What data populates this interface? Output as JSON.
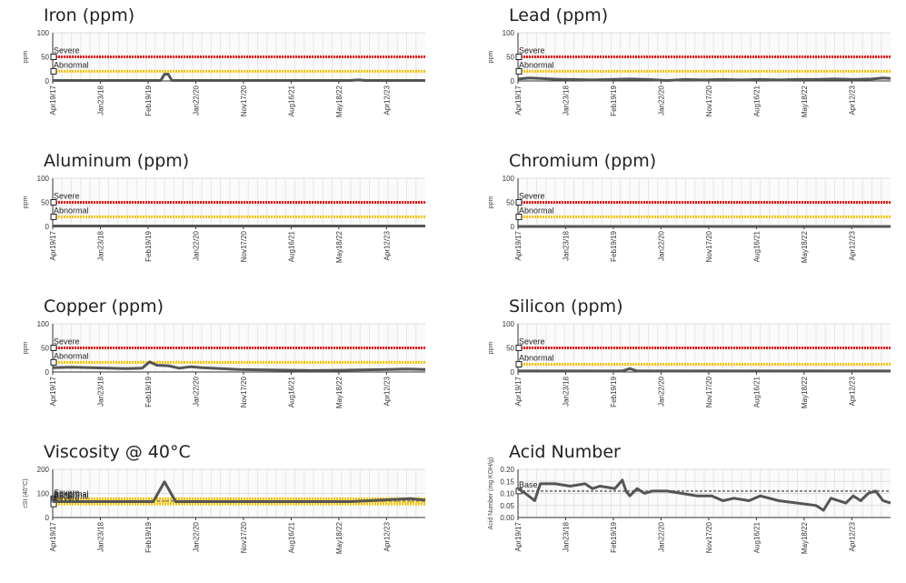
{
  "colors": {
    "severe": "#ee1111",
    "abnormal": "#f5c400",
    "base": "#888888",
    "data": "#555555",
    "grid": "#e6e6e6"
  },
  "chart_data": [
    {
      "type": "line",
      "title": "Iron (ppm)",
      "ylabel": "ppm",
      "ylim": [
        0,
        100
      ],
      "yticks": [
        "0",
        "50",
        "100"
      ],
      "xticks": [
        "Apr19/17",
        "Jan23/18",
        "Feb19/19",
        "Jan22/20",
        "Nov17/20",
        "Aug16/21",
        "May18/22",
        "Apr12/23"
      ],
      "limits": [
        {
          "label": "Severe",
          "value": 50,
          "color": "severe"
        },
        {
          "label": "Abnormal",
          "value": 20,
          "color": "abnormal"
        }
      ],
      "series": [
        {
          "x": [
            0,
            0.15,
            0.25,
            0.29,
            0.3,
            0.31,
            0.32,
            0.4,
            0.5,
            0.6,
            0.7,
            0.8,
            0.82,
            0.84,
            0.9,
            1
          ],
          "y": [
            1,
            1,
            1,
            1,
            14,
            14,
            1,
            1,
            1,
            1,
            1,
            1,
            2,
            1,
            1,
            1
          ]
        }
      ]
    },
    {
      "type": "line",
      "title": "Lead (ppm)",
      "ylabel": "ppm",
      "ylim": [
        0,
        100
      ],
      "yticks": [
        "0",
        "50",
        "100"
      ],
      "xticks": [
        "Apr19/17",
        "Jan23/18",
        "Feb19/19",
        "Jan22/20",
        "Nov17/20",
        "Aug16/21",
        "May18/22",
        "Apr12/23"
      ],
      "limits": [
        {
          "label": "Severe",
          "value": 50,
          "color": "severe"
        },
        {
          "label": "Abnormal",
          "value": 20,
          "color": "abnormal"
        }
      ],
      "series": [
        {
          "x": [
            0,
            0.03,
            0.06,
            0.09,
            0.12,
            0.15,
            0.2,
            0.25,
            0.3,
            0.35,
            0.4,
            0.45,
            0.5,
            0.55,
            0.6,
            0.65,
            0.7,
            0.75,
            0.8,
            0.85,
            0.9,
            0.95,
            0.98,
            1
          ],
          "y": [
            4,
            6,
            5,
            4,
            3,
            3,
            2,
            3,
            4,
            3,
            1,
            3,
            2,
            3,
            2,
            3,
            2,
            3,
            3,
            4,
            3,
            4,
            6,
            5
          ]
        }
      ]
    },
    {
      "type": "line",
      "title": "Aluminum (ppm)",
      "ylabel": "ppm",
      "ylim": [
        0,
        100
      ],
      "yticks": [
        "0",
        "50",
        "100"
      ],
      "xticks": [
        "Apr19/17",
        "Jan23/18",
        "Feb19/19",
        "Jan22/20",
        "Nov17/20",
        "Aug16/21",
        "May18/22",
        "Apr12/23"
      ],
      "limits": [
        {
          "label": "Severe",
          "value": 50,
          "color": "severe"
        },
        {
          "label": "Abnormal",
          "value": 20,
          "color": "abnormal"
        }
      ],
      "series": [
        {
          "x": [
            0,
            0.2,
            0.4,
            0.6,
            0.8,
            1
          ],
          "y": [
            1,
            1,
            1,
            1,
            1,
            1
          ]
        }
      ]
    },
    {
      "type": "line",
      "title": "Chromium (ppm)",
      "ylabel": "ppm",
      "ylim": [
        0,
        100
      ],
      "yticks": [
        "0",
        "50",
        "100"
      ],
      "xticks": [
        "Apr19/17",
        "Jan23/18",
        "Feb19/19",
        "Jan22/20",
        "Nov17/20",
        "Aug16/21",
        "May18/22",
        "Apr12/23"
      ],
      "limits": [
        {
          "label": "Severe",
          "value": 50,
          "color": "severe"
        },
        {
          "label": "Abnormal",
          "value": 20,
          "color": "abnormal"
        }
      ],
      "series": [
        {
          "x": [
            0,
            0.2,
            0.4,
            0.6,
            0.8,
            1
          ],
          "y": [
            0,
            0,
            0,
            0,
            0,
            0
          ]
        }
      ]
    },
    {
      "type": "line",
      "title": "Copper (ppm)",
      "ylabel": "ppm",
      "ylim": [
        0,
        100
      ],
      "yticks": [
        "0",
        "50",
        "100"
      ],
      "xticks": [
        "Apr19/17",
        "Jan23/18",
        "Feb19/19",
        "Jan22/20",
        "Nov17/20",
        "Aug16/21",
        "May18/22",
        "Apr12/23"
      ],
      "limits": [
        {
          "label": "Severe",
          "value": 50,
          "color": "severe"
        },
        {
          "label": "Abnormal",
          "value": 20,
          "color": "abnormal"
        }
      ],
      "series": [
        {
          "x": [
            0,
            0.05,
            0.1,
            0.15,
            0.2,
            0.24,
            0.26,
            0.28,
            0.31,
            0.34,
            0.37,
            0.4,
            0.45,
            0.5,
            0.6,
            0.7,
            0.8,
            0.9,
            0.95,
            1
          ],
          "y": [
            9,
            10,
            9,
            8,
            7,
            8,
            21,
            14,
            13,
            8,
            11,
            9,
            7,
            5,
            4,
            3,
            4,
            5,
            6,
            5
          ]
        }
      ]
    },
    {
      "type": "line",
      "title": "Silicon (ppm)",
      "ylabel": "ppm",
      "ylim": [
        0,
        100
      ],
      "yticks": [
        "0",
        "50",
        "100"
      ],
      "xticks": [
        "Apr19/17",
        "Jan23/18",
        "Feb19/19",
        "Jan22/20",
        "Nov17/20",
        "Aug16/21",
        "May18/22",
        "Apr12/23"
      ],
      "limits": [
        {
          "label": "Severe",
          "value": 50,
          "color": "severe"
        },
        {
          "label": "Abnormal",
          "value": 16,
          "color": "abnormal"
        }
      ],
      "series": [
        {
          "x": [
            0,
            0.2,
            0.28,
            0.3,
            0.32,
            0.4,
            0.6,
            0.8,
            1
          ],
          "y": [
            2,
            2,
            2,
            7,
            2,
            2,
            2,
            2,
            2
          ]
        }
      ]
    },
    {
      "type": "line",
      "title": "Viscosity @ 40°C",
      "ylabel": "cSt (40°C)",
      "ylim": [
        0,
        200
      ],
      "yticks": [
        "0",
        "100",
        "200"
      ],
      "xticks": [
        "Apr19/17",
        "Jan23/18",
        "Feb19/19",
        "Jan22/20",
        "Nov17/20",
        "Aug16/21",
        "May18/22",
        "Apr12/23"
      ],
      "limits": [
        {
          "label": "Severe",
          "value": 78,
          "color": "abnormal"
        },
        {
          "label": "Abnormal",
          "value": 72,
          "color": "abnormal"
        },
        {
          "label": "Base",
          "value": 68,
          "color": "base"
        },
        {
          "label": "Abnormal",
          "value": 62,
          "color": "abnormal"
        },
        {
          "label": "Severe",
          "value": 56,
          "color": "abnormal"
        }
      ],
      "series": [
        {
          "x": [
            0,
            0.1,
            0.2,
            0.27,
            0.3,
            0.33,
            0.4,
            0.6,
            0.8,
            0.96,
            1
          ],
          "y": [
            66,
            66,
            66,
            66,
            148,
            66,
            66,
            66,
            66,
            78,
            72
          ]
        }
      ]
    },
    {
      "type": "line",
      "title": "Acid Number",
      "ylabel": "Acid Number (mg KOH/g)",
      "ylim": [
        0,
        0.2
      ],
      "yticks": [
        "0.00",
        "0.05",
        "0.10",
        "0.15",
        "0.20"
      ],
      "xticks": [
        "Apr19/17",
        "Jan23/18",
        "Feb19/19",
        "Jan22/20",
        "Nov17/20",
        "Aug16/21",
        "May18/22",
        "Apr12/23"
      ],
      "limits": [
        {
          "label": "Base",
          "value": 0.11,
          "color": "base"
        }
      ],
      "series": [
        {
          "x": [
            0,
            0.02,
            0.045,
            0.06,
            0.1,
            0.14,
            0.18,
            0.2,
            0.22,
            0.26,
            0.28,
            0.29,
            0.3,
            0.32,
            0.34,
            0.36,
            0.4,
            0.44,
            0.48,
            0.52,
            0.55,
            0.58,
            0.62,
            0.65,
            0.7,
            0.75,
            0.8,
            0.82,
            0.84,
            0.88,
            0.9,
            0.92,
            0.94,
            0.96,
            0.98,
            1
          ],
          "y": [
            0.12,
            0.1,
            0.07,
            0.14,
            0.14,
            0.13,
            0.14,
            0.12,
            0.13,
            0.12,
            0.155,
            0.11,
            0.09,
            0.12,
            0.1,
            0.11,
            0.11,
            0.1,
            0.09,
            0.09,
            0.07,
            0.08,
            0.07,
            0.09,
            0.07,
            0.06,
            0.05,
            0.03,
            0.08,
            0.06,
            0.09,
            0.07,
            0.1,
            0.11,
            0.07,
            0.06
          ]
        }
      ]
    }
  ]
}
